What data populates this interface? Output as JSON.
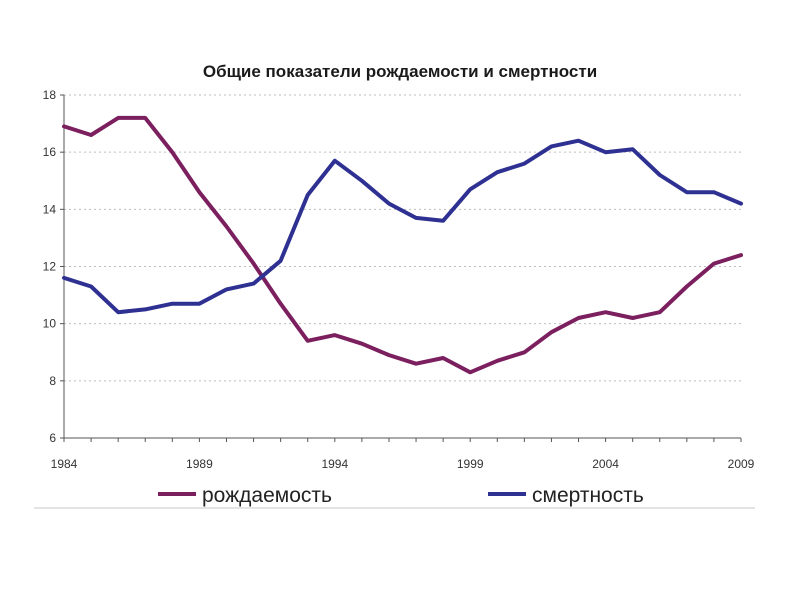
{
  "chart_data": {
    "type": "line",
    "title": "Общие показатели рождаемости и смертности",
    "xlabel": "",
    "ylabel": "",
    "x": [
      1984,
      1985,
      1986,
      1987,
      1988,
      1989,
      1990,
      1991,
      1992,
      1993,
      1994,
      1995,
      1996,
      1997,
      1998,
      1999,
      2000,
      2001,
      2002,
      2003,
      2004,
      2005,
      2006,
      2007,
      2008,
      2009
    ],
    "xticks": [
      1984,
      1989,
      1994,
      1999,
      2004,
      2009
    ],
    "yticks": [
      6,
      8,
      10,
      12,
      14,
      16,
      18
    ],
    "xlim": [
      1984,
      2009
    ],
    "ylim": [
      6,
      18
    ],
    "grid": "horizontal dotted",
    "legend": "bottom",
    "series": [
      {
        "name": "рождаемость",
        "color": "#7b1f5e",
        "values": [
          16.9,
          16.6,
          17.2,
          17.2,
          16.0,
          14.6,
          13.4,
          12.1,
          10.7,
          9.4,
          9.6,
          9.3,
          8.9,
          8.6,
          8.8,
          8.3,
          8.7,
          9.0,
          9.7,
          10.2,
          10.4,
          10.2,
          10.4,
          11.3,
          12.1,
          12.4
        ]
      },
      {
        "name": "смертность",
        "color": "#2e3192",
        "values": [
          11.6,
          11.3,
          10.4,
          10.5,
          10.7,
          10.7,
          11.2,
          11.4,
          12.2,
          14.5,
          15.7,
          15.0,
          14.2,
          13.7,
          13.6,
          14.7,
          15.3,
          15.6,
          16.2,
          16.4,
          16.0,
          16.1,
          15.2,
          14.6,
          14.6,
          14.2
        ]
      }
    ]
  }
}
